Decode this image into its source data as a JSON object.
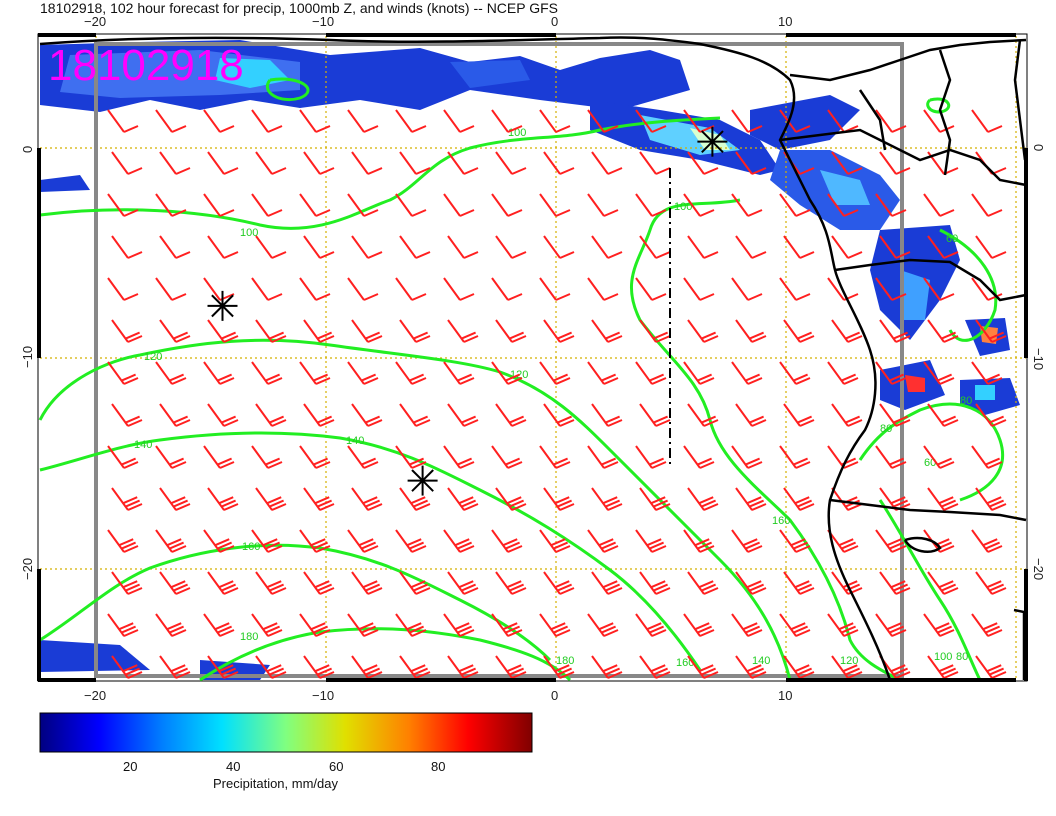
{
  "title": "18102918, 102 hour forecast for precip, 1000mb Z, and winds (knots) -- NCEP GFS",
  "date_stamp": "18102918",
  "colors": {
    "wind_barb": "#ff2020",
    "contour": "#22ee22",
    "coast": "#000000",
    "grid": "#d4b000",
    "date_stamp": "#ff00ff",
    "domain_box": "#888888"
  },
  "axes": {
    "lon_ticks": [
      "−20",
      "−10",
      "0",
      "10"
    ],
    "lat_ticks": [
      "0",
      "−10",
      "−20"
    ]
  },
  "contour_labels": [
    "100",
    "100",
    "100",
    "120",
    "120",
    "140",
    "140",
    "160",
    "160",
    "180",
    "180",
    "160",
    "140",
    "120",
    "60",
    "80",
    "100",
    "80",
    "80",
    "60"
  ],
  "colorbar": {
    "label": "Precipitation, mm/day",
    "ticks": [
      "20",
      "40",
      "60",
      "80"
    ],
    "stops": [
      "#000080",
      "#0000ff",
      "#0080ff",
      "#00e0ff",
      "#80ff80",
      "#e0e000",
      "#ff8000",
      "#ff0000",
      "#800000"
    ]
  },
  "markers": [
    {
      "name": "storm-marker-west",
      "lon": -14.5,
      "lat": -7.5
    },
    {
      "name": "storm-marker-south",
      "lon": -5.8,
      "lat": -15.8
    },
    {
      "name": "storm-marker-north",
      "lon": 6.8,
      "lat": 0.3
    }
  ]
}
